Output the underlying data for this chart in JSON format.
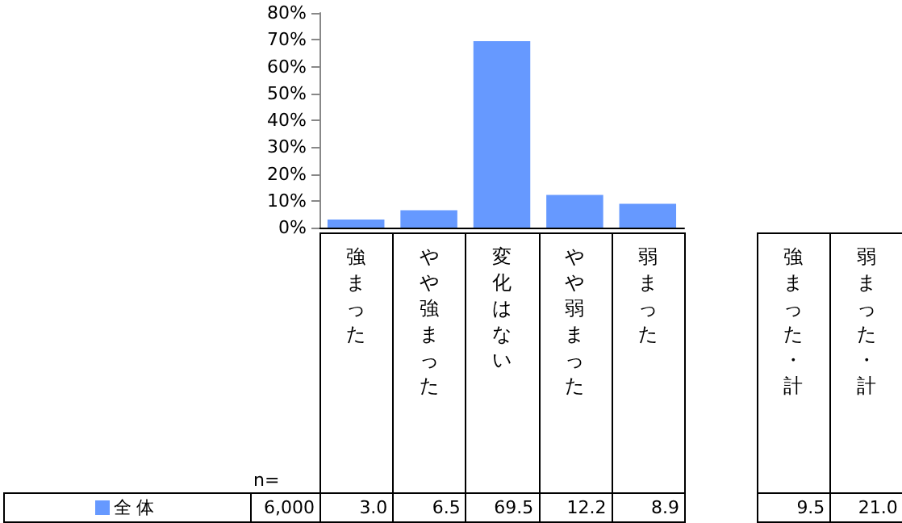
{
  "chart_data": {
    "type": "bar",
    "categories": [
      "強まった",
      "やや強まった",
      "変化はない",
      "やや弱まった",
      "弱まった"
    ],
    "series": [
      {
        "name": "全 体",
        "color": "#6699ff",
        "values": [
          3.0,
          6.5,
          69.5,
          12.2,
          8.9
        ],
        "value_labels": [
          "3.0",
          "6.5",
          "69.5",
          "12.2",
          "8.9"
        ]
      }
    ],
    "ylim": [
      0,
      80
    ],
    "yticks": [
      {
        "value": 0,
        "label": "0%"
      },
      {
        "value": 10,
        "label": "10%"
      },
      {
        "value": 20,
        "label": "20%"
      },
      {
        "value": 30,
        "label": "30%"
      },
      {
        "value": 40,
        "label": "40%"
      },
      {
        "value": 50,
        "label": "50%"
      },
      {
        "value": 60,
        "label": "60%"
      },
      {
        "value": 70,
        "label": "70%"
      },
      {
        "value": 80,
        "label": "80%"
      }
    ],
    "legend": "bottom left",
    "grid": false,
    "annotations": [
      "n=",
      "6,000",
      "強まった・計",
      "弱まった・計",
      "9.5",
      "21.0"
    ]
  }
}
